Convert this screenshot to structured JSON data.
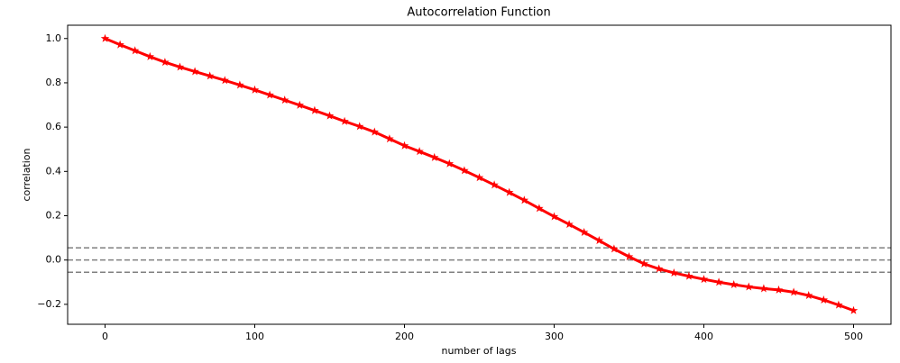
{
  "chart_data": {
    "type": "line",
    "title": "Autocorrelation Function",
    "xlabel": "number of lags",
    "ylabel": "correlation",
    "x": [
      0,
      10,
      20,
      30,
      40,
      50,
      60,
      70,
      80,
      90,
      100,
      110,
      120,
      130,
      140,
      150,
      160,
      170,
      180,
      190,
      200,
      210,
      220,
      230,
      240,
      250,
      260,
      270,
      280,
      290,
      300,
      310,
      320,
      330,
      340,
      350,
      360,
      370,
      380,
      390,
      400,
      410,
      420,
      430,
      440,
      450,
      460,
      470,
      480,
      490,
      500
    ],
    "series": [
      {
        "color": "#ff0000",
        "marker": "*",
        "values": [
          1.0,
          0.972,
          0.945,
          0.918,
          0.893,
          0.871,
          0.851,
          0.831,
          0.811,
          0.79,
          0.768,
          0.745,
          0.722,
          0.699,
          0.675,
          0.651,
          0.626,
          0.603,
          0.578,
          0.547,
          0.516,
          0.49,
          0.463,
          0.435,
          0.404,
          0.372,
          0.339,
          0.305,
          0.27,
          0.233,
          0.196,
          0.161,
          0.125,
          0.088,
          0.05,
          0.015,
          -0.017,
          -0.04,
          -0.058,
          -0.073,
          -0.087,
          -0.1,
          -0.111,
          -0.121,
          -0.129,
          -0.135,
          -0.145,
          -0.16,
          -0.18,
          -0.203,
          -0.228
        ]
      }
    ],
    "hlines": [
      0.055,
      0,
      -0.055
    ],
    "hline_color": "#808080",
    "hline_style": "dashed",
    "xlim": [
      -25,
      525
    ],
    "ylim": [
      -0.29,
      1.06
    ],
    "xticks": [
      0,
      100,
      200,
      300,
      400,
      500
    ],
    "yticks": [
      {
        "value": 1.0,
        "label": "1.0"
      },
      {
        "value": 0.8,
        "label": "0.8"
      },
      {
        "value": 0.6,
        "label": "0.6"
      },
      {
        "value": 0.4,
        "label": "0.4"
      },
      {
        "value": 0.2,
        "label": "0.2"
      },
      {
        "value": 0.0,
        "label": "0.0"
      },
      {
        "value": -0.2,
        "label": "−0.2"
      }
    ],
    "grid": false
  }
}
